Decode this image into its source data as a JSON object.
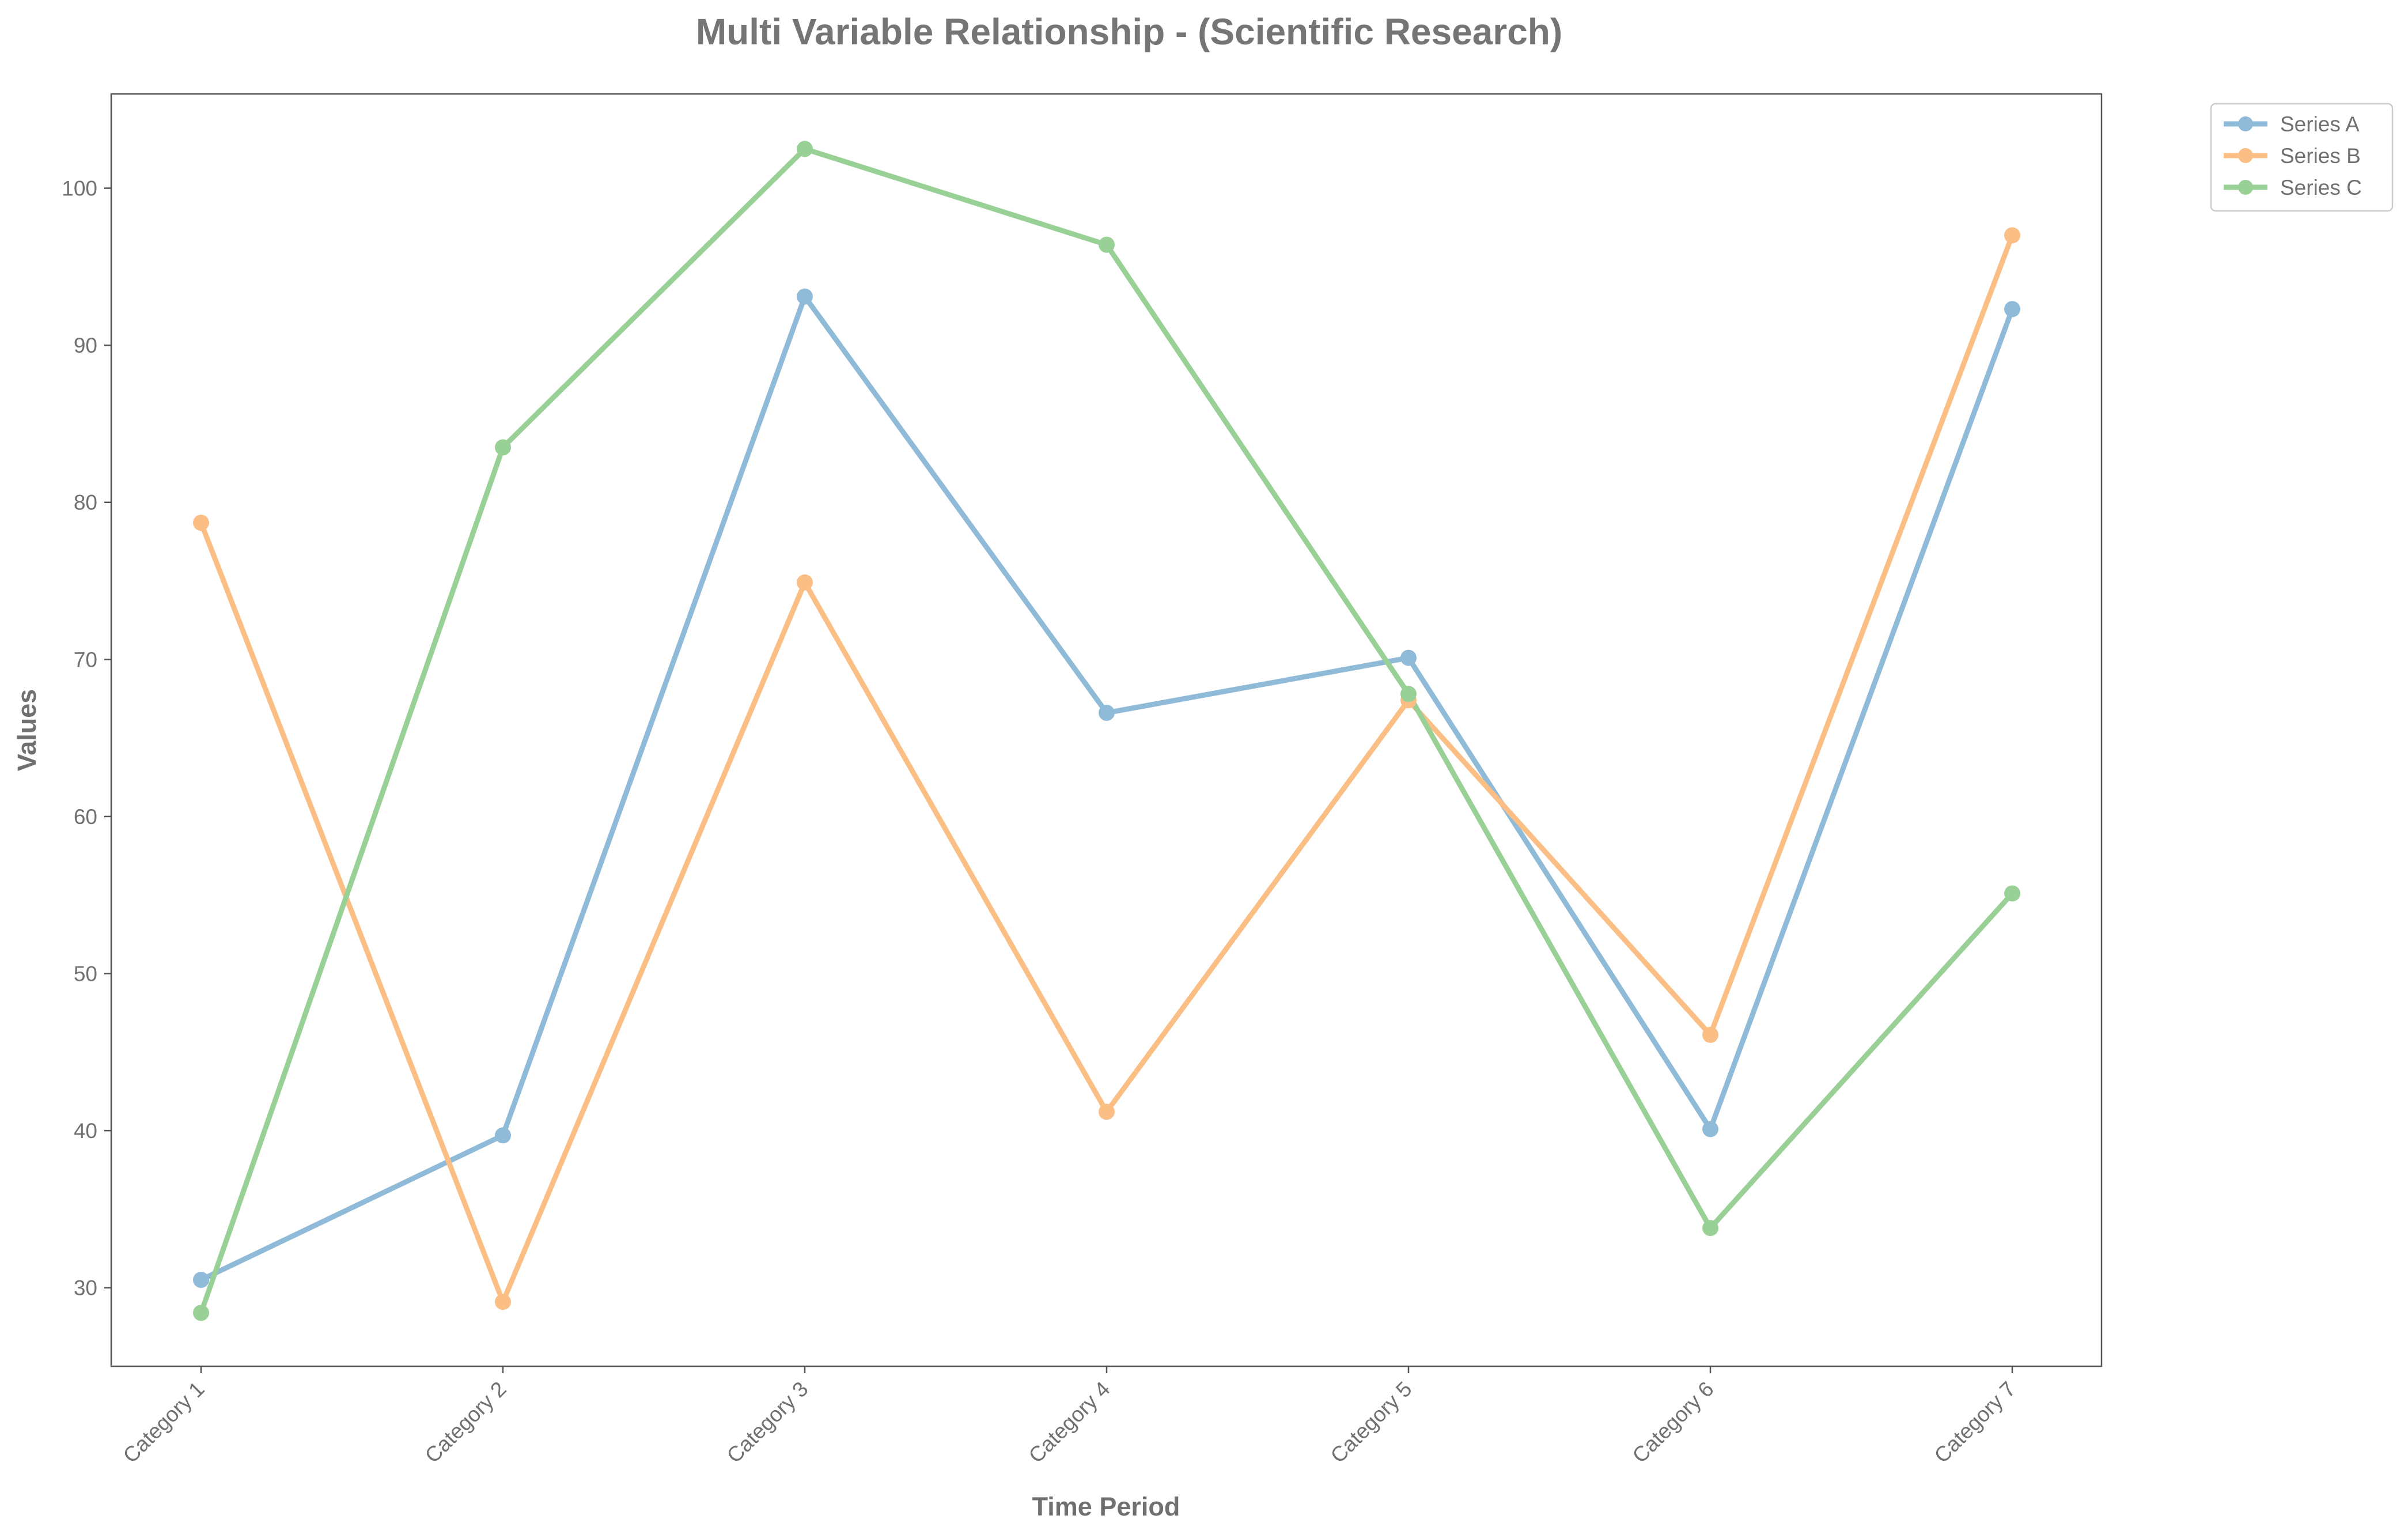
{
  "chart_data": {
    "type": "line",
    "title": "Multi Variable Relationship - (Scientific Research)",
    "xlabel": "Time Period",
    "ylabel": "Values",
    "categories": [
      "Category 1",
      "Category 2",
      "Category 3",
      "Category 4",
      "Category 5",
      "Category 6",
      "Category 7"
    ],
    "ylim": [
      25,
      106
    ],
    "yticks": [
      30,
      40,
      50,
      60,
      70,
      80,
      90,
      100
    ],
    "grid": false,
    "legend_position": "outside-top-right",
    "series": [
      {
        "name": "Series A",
        "color": "#8fbad8",
        "values": [
          30.5,
          39.7,
          93.1,
          66.6,
          70.1,
          40.1,
          92.3
        ]
      },
      {
        "name": "Series B",
        "color": "#fbbf85",
        "values": [
          78.7,
          29.1,
          74.9,
          41.2,
          67.4,
          46.1,
          97.0
        ]
      },
      {
        "name": "Series C",
        "color": "#98d095",
        "values": [
          28.4,
          83.5,
          102.5,
          96.4,
          67.8,
          33.8,
          55.1
        ]
      }
    ]
  }
}
